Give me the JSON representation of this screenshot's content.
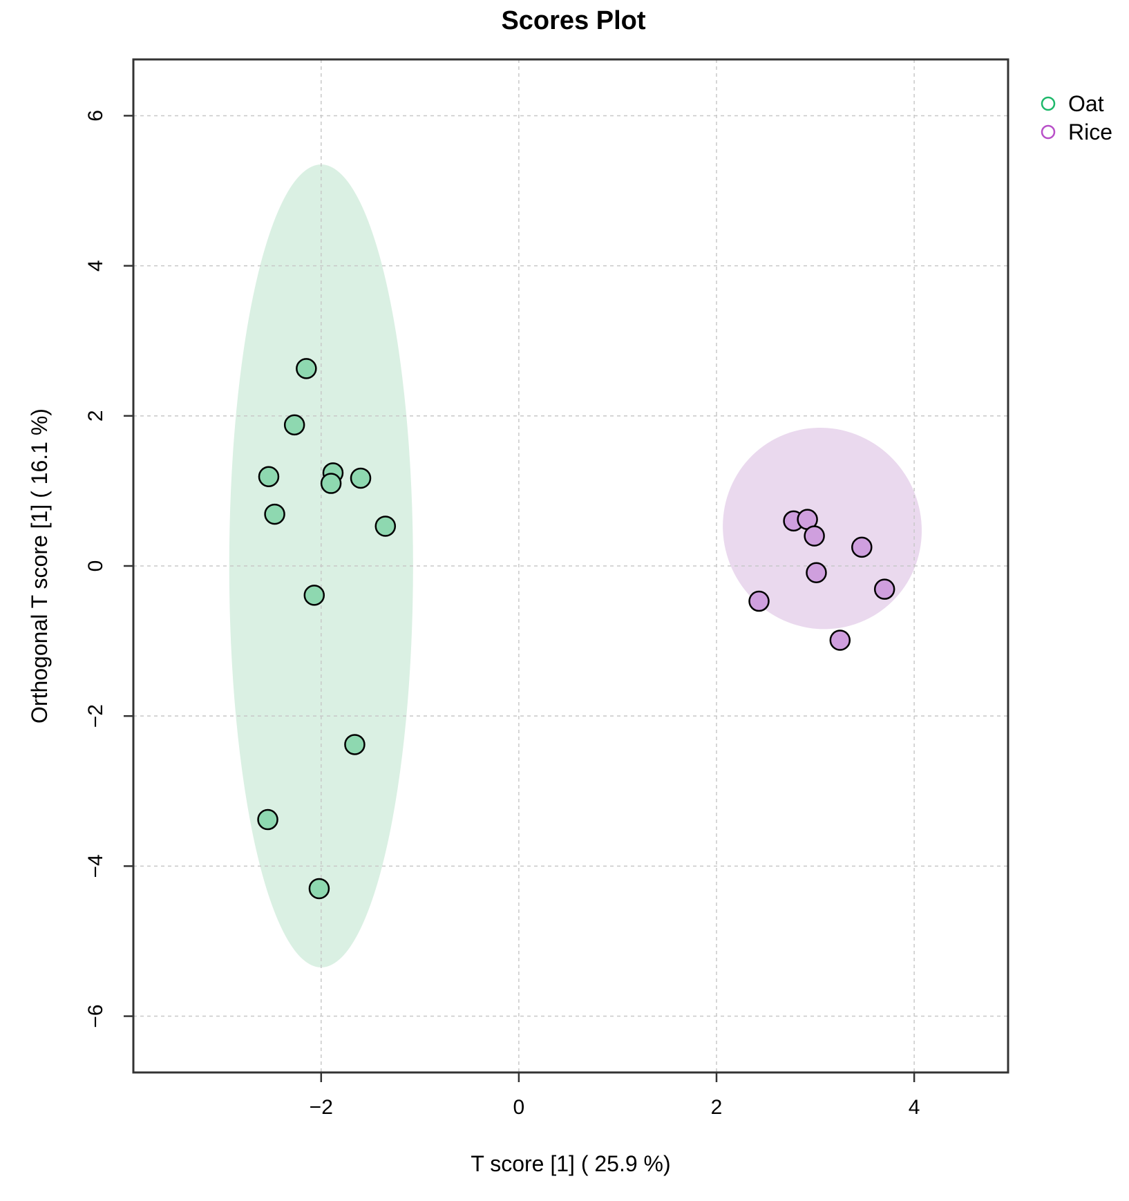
{
  "chart_data": {
    "type": "scatter",
    "title": "Scores Plot",
    "xlabel": "T score [1] ( 25.9 %)",
    "ylabel": "Orthogonal T score [1] ( 16.1 %)",
    "xlim": [
      -3.9,
      4.95
    ],
    "ylim": [
      -6.75,
      6.75
    ],
    "xticks": [
      -2,
      0,
      2,
      4
    ],
    "yticks": [
      -6,
      -4,
      -2,
      0,
      2,
      4,
      6
    ],
    "xtick_labels": [
      "−2",
      "0",
      "2",
      "4"
    ],
    "ytick_labels": [
      "−6",
      "−4",
      "−2",
      "0",
      "2",
      "4",
      "6"
    ],
    "grid": true,
    "legend_position": "top-right, outside plot",
    "series": [
      {
        "name": "Oat",
        "color": "#1db86a",
        "fill": "#8ed8b0",
        "ellipse": {
          "cx": -2.0,
          "cy": 0.0,
          "rx": 0.93,
          "ry": 5.35,
          "angle": 0,
          "fill": "#daf0e3"
        },
        "points": [
          {
            "x": -2.15,
            "y": 2.63
          },
          {
            "x": -2.27,
            "y": 1.88
          },
          {
            "x": -2.53,
            "y": 1.19
          },
          {
            "x": -1.88,
            "y": 1.24
          },
          {
            "x": -1.9,
            "y": 1.1
          },
          {
            "x": -1.6,
            "y": 1.17
          },
          {
            "x": -2.47,
            "y": 0.69
          },
          {
            "x": -1.35,
            "y": 0.53
          },
          {
            "x": -2.07,
            "y": -0.39
          },
          {
            "x": -1.66,
            "y": -2.38
          },
          {
            "x": -2.54,
            "y": -3.38
          },
          {
            "x": -2.02,
            "y": -4.3
          }
        ]
      },
      {
        "name": "Rice",
        "color": "#b84fc8",
        "fill": "#cf9fde",
        "ellipse": {
          "cx": 3.07,
          "cy": 0.5,
          "rx": 1.0,
          "ry": 1.35,
          "angle": -30,
          "fill": "#ead9ee"
        },
        "points": [
          {
            "x": 2.78,
            "y": 0.6
          },
          {
            "x": 2.92,
            "y": 0.62
          },
          {
            "x": 2.99,
            "y": 0.4
          },
          {
            "x": 3.47,
            "y": 0.25
          },
          {
            "x": 3.01,
            "y": -0.09
          },
          {
            "x": 3.7,
            "y": -0.31
          },
          {
            "x": 2.43,
            "y": -0.47
          },
          {
            "x": 3.25,
            "y": -0.99
          }
        ]
      }
    ]
  }
}
